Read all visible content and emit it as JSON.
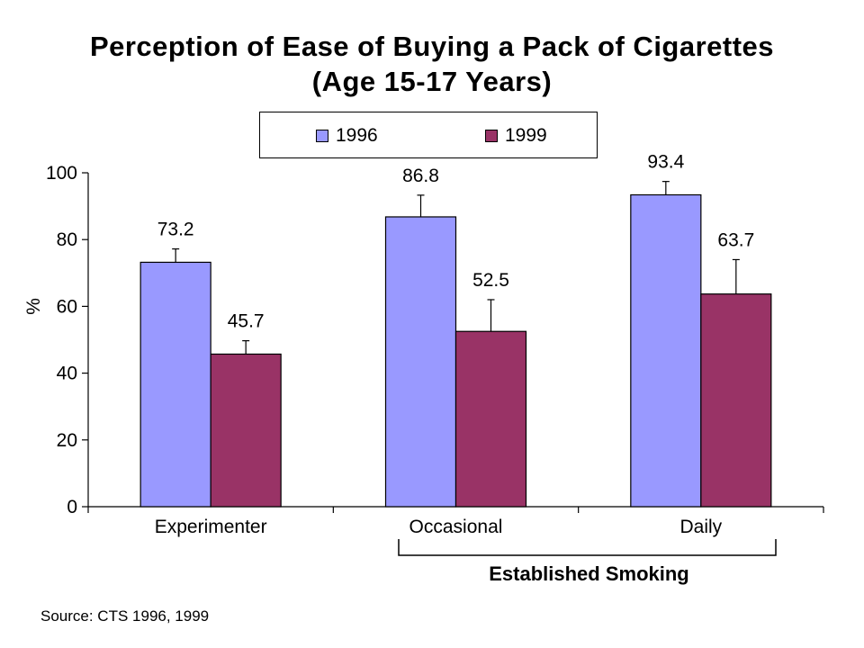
{
  "title_line1": "Perception of Ease of Buying a Pack of Cigarettes",
  "title_line2": "(Age 15-17 Years)",
  "source": "Source:  CTS 1996, 1999",
  "group_label": "Established Smoking",
  "chart_data": {
    "type": "bar",
    "title": "Perception of Ease of Buying a Pack of Cigarettes (Age 15-17 Years)",
    "xlabel": "",
    "ylabel": "%",
    "ylim": [
      0,
      100
    ],
    "yticks": [
      0,
      20,
      40,
      60,
      80,
      100
    ],
    "categories": [
      "Experimenter",
      "Occasional",
      "Daily"
    ],
    "series": [
      {
        "name": "1996",
        "color": "#9999FF",
        "values": [
          73.2,
          86.8,
          93.4
        ],
        "labels": [
          "73.2",
          "86.8",
          "93.4"
        ],
        "error": [
          4.0,
          6.5,
          4.0
        ]
      },
      {
        "name": "1999",
        "color": "#993366",
        "values": [
          45.7,
          52.5,
          63.7
        ],
        "labels": [
          "45.7",
          "52.5",
          "63.7"
        ],
        "error": [
          4.0,
          9.5,
          10.3
        ]
      }
    ],
    "grid": false,
    "legend_position": "top"
  }
}
